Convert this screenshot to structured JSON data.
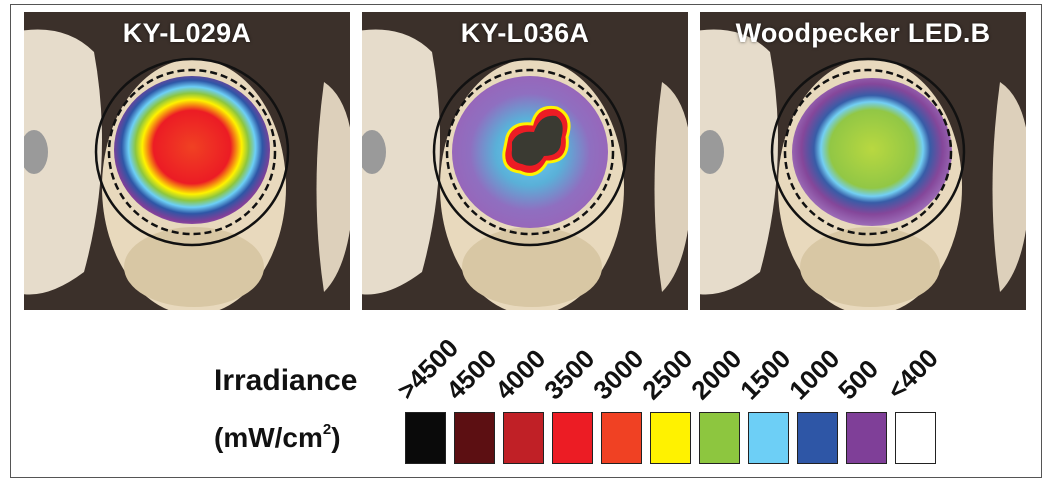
{
  "panels": [
    {
      "title": "KY-L029A"
    },
    {
      "title": "KY-L036A"
    },
    {
      "title": "Woodpecker LED.B"
    }
  ],
  "legend": {
    "title": "Irradiance",
    "unit_prefix": "(mW/cm",
    "unit_sup": "2",
    "unit_suffix": ")",
    "ticks": [
      ">4500",
      "4500",
      "4000",
      "3500",
      "3000",
      "2500",
      "2000",
      "1500",
      "1000",
      "500",
      "<400"
    ],
    "colors": [
      "#0a0a0a",
      "#5c0f12",
      "#c02026",
      "#ec1c24",
      "#f04123",
      "#fff200",
      "#8dc63f",
      "#6dcff6",
      "#2e56a6",
      "#7f3f98",
      "#ffffff"
    ]
  }
}
